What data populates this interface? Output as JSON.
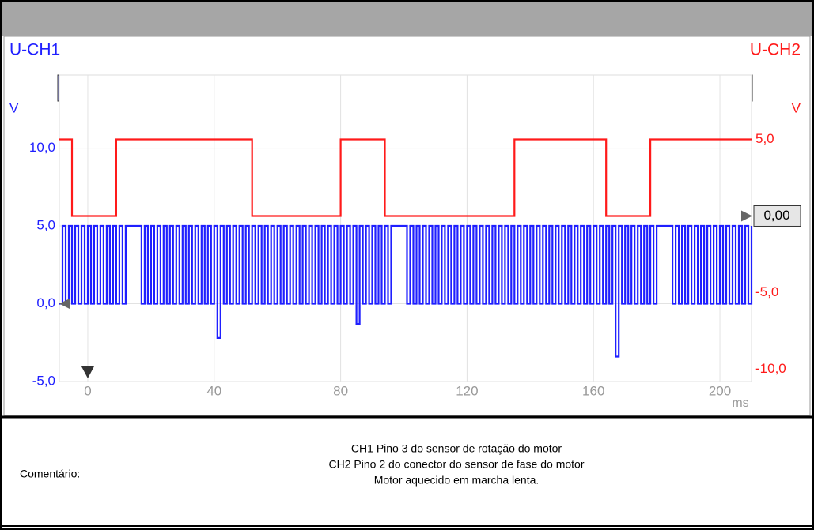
{
  "chart_data": {
    "type": "line",
    "step": true,
    "series": [
      {
        "name": "U-CH1",
        "color": "#1f1fff",
        "axis": "y",
        "x": [
          -9,
          -8,
          -7,
          -6,
          -5,
          -4,
          -3,
          -2,
          -1,
          0,
          1,
          2,
          3,
          4,
          5,
          6,
          7,
          8,
          9,
          10,
          11,
          12,
          13,
          14,
          15,
          16,
          17,
          18,
          19,
          20,
          21,
          22,
          23,
          24,
          25,
          26,
          27,
          28,
          29,
          30,
          31,
          32,
          33,
          34,
          35,
          36,
          37,
          38,
          39,
          40,
          41,
          42,
          43,
          44,
          45,
          46,
          47,
          48,
          49,
          50,
          51,
          52,
          53,
          54,
          55,
          56,
          57,
          58,
          59,
          60,
          61,
          62,
          63,
          64,
          65,
          66,
          67,
          68,
          69,
          70,
          71,
          72,
          73,
          74,
          75,
          76,
          77,
          78,
          79,
          80,
          81,
          82,
          83,
          84,
          85,
          86,
          87,
          88,
          89,
          90,
          91,
          92,
          93,
          94,
          95,
          96,
          97,
          98,
          99,
          100,
          101,
          102,
          103,
          104,
          105,
          106,
          107,
          108,
          109,
          110,
          111,
          112,
          113,
          114,
          115,
          116,
          117,
          118,
          119,
          120,
          121,
          122,
          123,
          124,
          125,
          126,
          127,
          128,
          129,
          130,
          131,
          132,
          133,
          134,
          135,
          136,
          137,
          138,
          139,
          140,
          141,
          142,
          143,
          144,
          145,
          146,
          147,
          148,
          149,
          150,
          151,
          152,
          153,
          154,
          155,
          156,
          157,
          158,
          159,
          160,
          161,
          162,
          163,
          164,
          165,
          166,
          167,
          168,
          169,
          170,
          171,
          172,
          173,
          174,
          175,
          176,
          177,
          178,
          179,
          180,
          181,
          182,
          183,
          184,
          185,
          186,
          187,
          188,
          189,
          190,
          191,
          192,
          193,
          194,
          195,
          196,
          197,
          198,
          199,
          200,
          201,
          202,
          203,
          204,
          205,
          206,
          207,
          208,
          209,
          210
        ],
        "values": [
          0,
          5,
          0,
          5,
          0,
          5,
          0,
          5,
          0,
          5,
          0,
          5,
          0,
          5,
          0,
          5,
          0,
          5,
          0,
          5,
          0,
          5,
          5,
          5,
          5,
          5,
          0,
          5,
          0,
          5,
          0,
          5,
          0,
          5,
          0,
          5,
          0,
          5,
          0,
          5,
          0,
          5,
          0,
          5,
          0,
          5,
          0,
          5,
          0,
          5,
          -2.2,
          5,
          0,
          5,
          0,
          5,
          0,
          5,
          0,
          5,
          0,
          5,
          0,
          5,
          0,
          5,
          0,
          5,
          0,
          5,
          0,
          5,
          0,
          5,
          0,
          5,
          0,
          5,
          0,
          5,
          0,
          5,
          0,
          5,
          0,
          5,
          0,
          5,
          0,
          5,
          0,
          5,
          0,
          5,
          -1.3,
          5,
          0,
          5,
          0,
          5,
          0,
          5,
          0,
          5,
          0,
          5,
          5,
          5,
          5,
          5,
          0,
          5,
          0,
          5,
          0,
          5,
          0,
          5,
          0,
          5,
          0,
          5,
          0,
          5,
          0,
          5,
          0,
          5,
          0,
          5,
          0,
          5,
          0,
          5,
          0,
          5,
          0,
          5,
          0,
          5,
          0,
          5,
          0,
          5,
          0,
          5,
          0,
          5,
          0,
          5,
          0,
          5,
          0,
          5,
          0,
          5,
          0,
          5,
          0,
          5,
          0,
          5,
          0,
          5,
          0,
          5,
          0,
          5,
          0,
          5,
          0,
          5,
          0,
          5,
          0,
          5,
          -3.4,
          5,
          0,
          5,
          0,
          5,
          0,
          5,
          0,
          5,
          0,
          5,
          0,
          5,
          5,
          5,
          5,
          5,
          0,
          5,
          0,
          5,
          0,
          5,
          0,
          5,
          0,
          5,
          0,
          5,
          0,
          5,
          0,
          5,
          0,
          5,
          0,
          5,
          0,
          5,
          0,
          5,
          0,
          5
        ]
      },
      {
        "name": "U-CH2",
        "color": "#ff1a1a",
        "axis": "y2",
        "x": [
          -9,
          -5,
          9,
          52,
          80,
          94,
          135,
          164,
          178,
          210
        ],
        "values": [
          5,
          0,
          5,
          0,
          5,
          0,
          5,
          0,
          5,
          5
        ]
      }
    ],
    "xlim": [
      -9,
      210
    ],
    "xticks": [
      0,
      40,
      80,
      120,
      160,
      200
    ],
    "x_unit": "ms",
    "ylim": [
      -5,
      14.7
    ],
    "yticks": [
      {
        "value": -5,
        "label": "-5,0"
      },
      {
        "value": 0,
        "label": "0,0"
      },
      {
        "value": 5,
        "label": "5,0"
      },
      {
        "value": 10,
        "label": "10,0"
      }
    ],
    "y_unit": "V",
    "y2lim": [
      -10.8,
      9.2
    ],
    "y2ticks": [
      {
        "value": -10,
        "label": "-10,0"
      },
      {
        "value": -5,
        "label": "-5,0"
      },
      {
        "value": 5,
        "label": "5,0"
      }
    ],
    "y2_unit": "V",
    "reference_level": {
      "value": 0,
      "label": "0,00"
    },
    "trigger_channel": "2",
    "grid": true
  },
  "comment": {
    "label": "Comentário:",
    "lines": [
      "CH1 Pino 3 do sensor de rotação do motor",
      "CH2 Pino 2 do conector do sensor de fase do motor",
      "Motor aquecido em marcha lenta."
    ]
  }
}
